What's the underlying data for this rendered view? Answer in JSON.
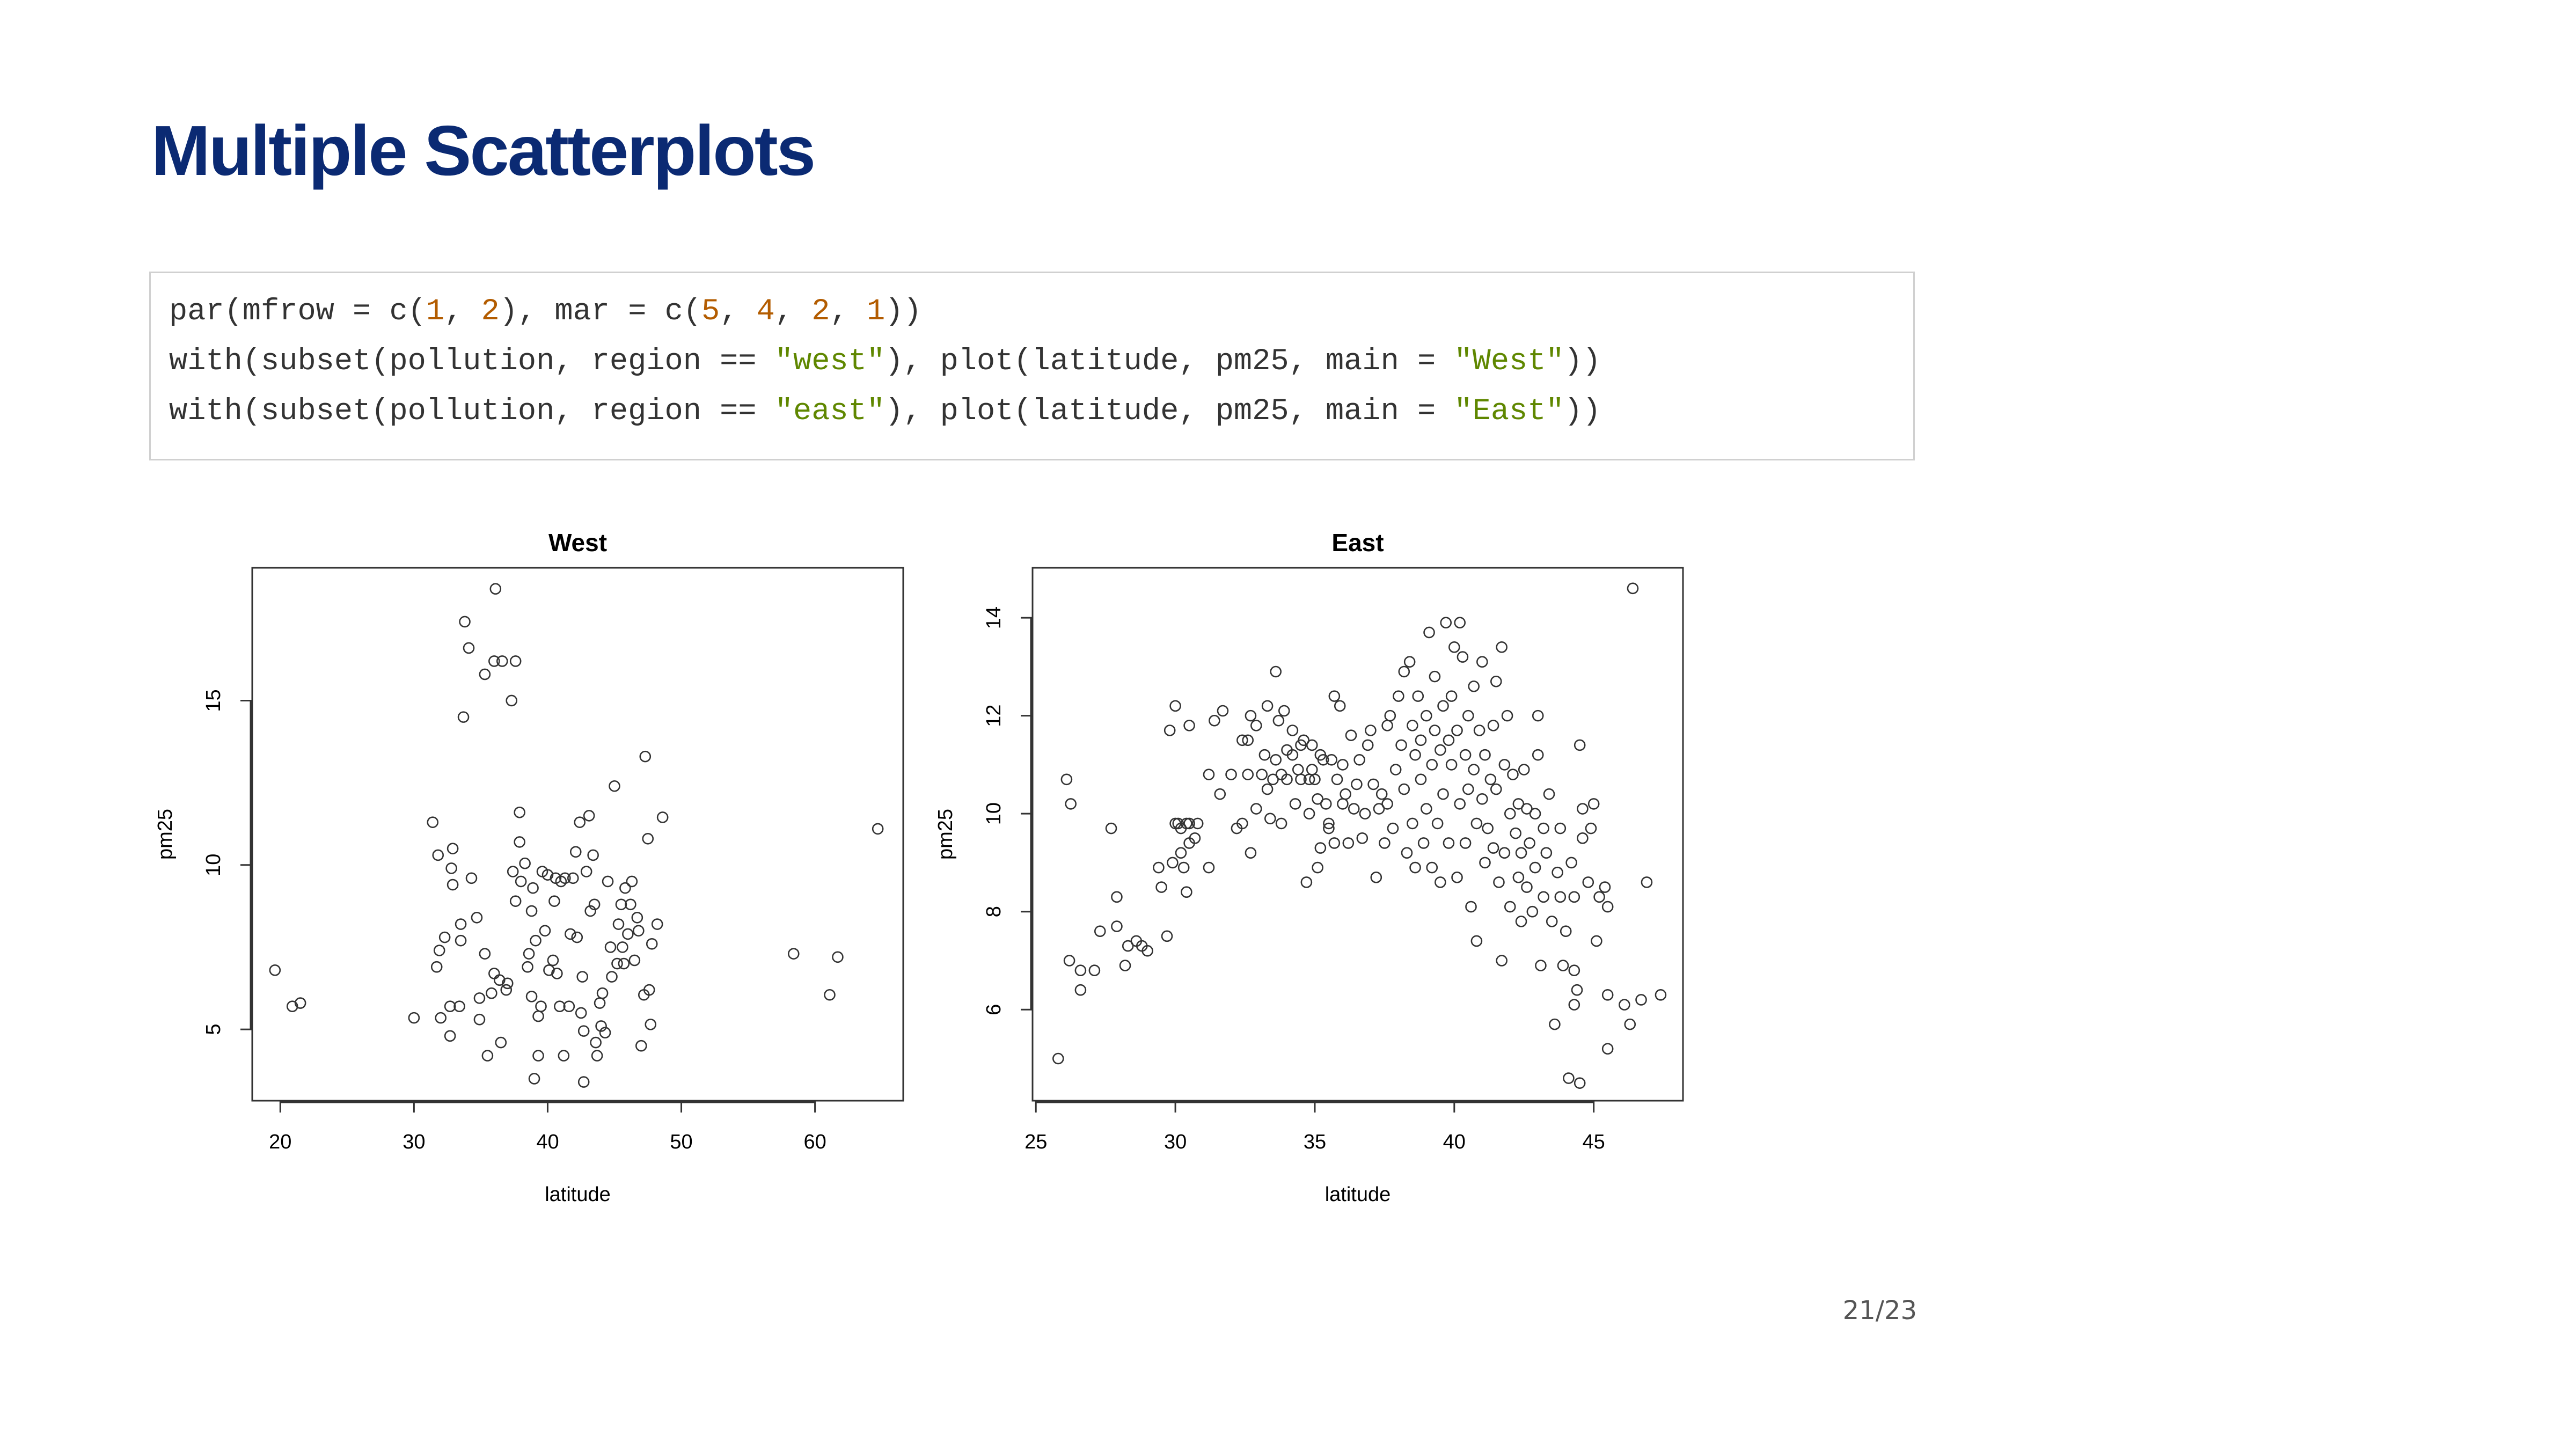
{
  "slide_title": "Multiple Scatterplots",
  "code": {
    "lines": [
      [
        {
          "text": "par(mfrow = c(",
          "color": "#333333"
        },
        {
          "text": "1",
          "color": "#b35c00"
        },
        {
          "text": ", ",
          "color": "#333333"
        },
        {
          "text": "2",
          "color": "#b35c00"
        },
        {
          "text": "), mar = c(",
          "color": "#333333"
        },
        {
          "text": "5",
          "color": "#b35c00"
        },
        {
          "text": ", ",
          "color": "#333333"
        },
        {
          "text": "4",
          "color": "#b35c00"
        },
        {
          "text": ", ",
          "color": "#333333"
        },
        {
          "text": "2",
          "color": "#b35c00"
        },
        {
          "text": ", ",
          "color": "#333333"
        },
        {
          "text": "1",
          "color": "#b35c00"
        },
        {
          "text": "))",
          "color": "#333333"
        }
      ],
      [
        {
          "text": "with(subset(pollution, region == ",
          "color": "#333333"
        },
        {
          "text": "\"west\"",
          "color": "#5f8700"
        },
        {
          "text": "), plot(latitude, pm25, main = ",
          "color": "#333333"
        },
        {
          "text": "\"West\"",
          "color": "#5f8700"
        },
        {
          "text": "))",
          "color": "#333333"
        }
      ],
      [
        {
          "text": "with(subset(pollution, region == ",
          "color": "#333333"
        },
        {
          "text": "\"east\"",
          "color": "#5f8700"
        },
        {
          "text": "), plot(latitude, pm25, main = ",
          "color": "#333333"
        },
        {
          "text": "\"East\"",
          "color": "#5f8700"
        },
        {
          "text": "))",
          "color": "#333333"
        }
      ]
    ]
  },
  "chart_data": [
    {
      "type": "scatter",
      "title": "West",
      "xlabel": "latitude",
      "ylabel": "pm25",
      "color": "#333333",
      "xlim": [
        17.9,
        66.6
      ],
      "ylim": [
        2.83,
        19.04
      ],
      "xticks": [
        20,
        30,
        40,
        50,
        60
      ],
      "yticks": [
        5,
        10,
        15
      ],
      "x": [
        19.6,
        20.9,
        21.5,
        30,
        31.4,
        31.8,
        31.7,
        31.9,
        32.3,
        32,
        32.9,
        32.8,
        32.9,
        32.7,
        32.7,
        33.4,
        33.5,
        33.5,
        34.3,
        34.7,
        33.8,
        34.1,
        33.7,
        35.3,
        36.1,
        36,
        36.6,
        37.6,
        37.3,
        35.3,
        34.9,
        34.9,
        35.5,
        35.8,
        36,
        36.5,
        36.4,
        36.9,
        37,
        37.4,
        37.6,
        37.9,
        37.9,
        38,
        38.3,
        38.5,
        38.6,
        38.8,
        38.9,
        38.8,
        39,
        39.1,
        39.3,
        39.3,
        39.5,
        39.6,
        39.8,
        40,
        40.1,
        40.4,
        40.5,
        40.6,
        40.7,
        40.9,
        41,
        41.2,
        41.3,
        41.6,
        41.7,
        41.9,
        42.1,
        42.2,
        42.4,
        42.5,
        42.6,
        42.7,
        42.7,
        42.9,
        43.1,
        43.2,
        43.4,
        43.5,
        43.6,
        43.7,
        43.9,
        44,
        44.1,
        44.3,
        44.5,
        44.7,
        44.8,
        45,
        45.2,
        45.3,
        45.5,
        45.6,
        45.7,
        45.8,
        46,
        46.2,
        46.3,
        46.5,
        46.7,
        46.8,
        47,
        47.2,
        47.3,
        47.5,
        47.6,
        47.7,
        47.8,
        48.2,
        48.6,
        58.4,
        61.1,
        61.7,
        64.7
      ],
      "values": [
        6.8,
        5.7,
        5.8,
        5.35,
        11.3,
        10.3,
        6.9,
        7.4,
        7.8,
        5.35,
        10.5,
        9.9,
        9.4,
        5.7,
        4.8,
        5.7,
        8.2,
        7.7,
        9.6,
        8.4,
        17.4,
        16.6,
        14.5,
        15.8,
        18.4,
        16.2,
        16.2,
        16.2,
        15,
        7.3,
        5.95,
        5.3,
        4.2,
        6.1,
        6.7,
        4.6,
        6.5,
        6.2,
        6.4,
        9.8,
        8.9,
        11.6,
        10.7,
        9.5,
        10.05,
        6.9,
        7.3,
        8.6,
        9.3,
        6,
        3.5,
        7.7,
        5.4,
        4.2,
        5.7,
        9.8,
        8,
        9.7,
        6.8,
        7.1,
        8.9,
        9.6,
        6.7,
        5.7,
        9.5,
        4.2,
        9.6,
        5.7,
        7.9,
        9.6,
        10.4,
        7.8,
        11.3,
        5.5,
        6.6,
        4.95,
        3.4,
        9.8,
        11.5,
        8.6,
        10.3,
        8.8,
        4.6,
        4.2,
        5.8,
        5.1,
        6.1,
        4.9,
        9.5,
        7.5,
        6.6,
        12.4,
        7,
        8.2,
        8.8,
        7.5,
        7,
        9.3,
        7.9,
        8.8,
        9.5,
        7.1,
        8.4,
        8,
        4.5,
        6.05,
        13.3,
        10.8,
        6.2,
        5.15,
        7.6,
        8.2,
        11.45,
        7.3,
        6.05,
        7.2,
        11.1
      ]
    },
    {
      "type": "scatter",
      "title": "East",
      "xlabel": "latitude",
      "ylabel": "pm25",
      "color": "#333333",
      "xlim": [
        24.88,
        48.2
      ],
      "ylim": [
        4.14,
        15.02
      ],
      "xticks": [
        25,
        30,
        35,
        40,
        45
      ],
      "yticks": [
        6,
        8,
        10,
        12,
        14
      ],
      "x": [
        25.8,
        26.1,
        26.25,
        26.2,
        26.6,
        26.6,
        27.1,
        27.3,
        27.7,
        27.9,
        27.9,
        28.2,
        28.3,
        28.6,
        28.8,
        29,
        29.4,
        29.5,
        29.7,
        29.8,
        30,
        30,
        30.1,
        30.2,
        30.4,
        30.5,
        30.5,
        29.9,
        30.2,
        30.3,
        30.5,
        30.7,
        30.8,
        30.4,
        31.2,
        31.2,
        31.4,
        31.6,
        31.7,
        32,
        32.2,
        32.4,
        32.4,
        32.6,
        32.6,
        32.7,
        32.7,
        32.9,
        32.9,
        33.1,
        33.2,
        33.3,
        33.3,
        33.4,
        33.5,
        33.6,
        33.6,
        33.7,
        33.8,
        33.8,
        33.9,
        34,
        34,
        34.2,
        34.2,
        34.3,
        34.4,
        34.5,
        34.5,
        34.6,
        34.7,
        34.8,
        34.8,
        34.9,
        34.9,
        35,
        35.1,
        35.1,
        35.2,
        35.2,
        35.3,
        35.4,
        35.5,
        35.5,
        35.6,
        35.7,
        35.7,
        35.8,
        35.9,
        36,
        36,
        36.1,
        36.2,
        36.3,
        36.4,
        36.5,
        36.6,
        36.7,
        36.8,
        36.9,
        37,
        37.1,
        37.2,
        37.3,
        37.4,
        37.5,
        37.6,
        37.6,
        37.7,
        37.8,
        37.9,
        38,
        38.1,
        38.2,
        38.2,
        38.3,
        38.4,
        38.5,
        38.5,
        38.6,
        38.6,
        38.7,
        38.8,
        38.8,
        38.9,
        39,
        39,
        39.1,
        39.2,
        39.2,
        39.3,
        39.3,
        39.4,
        39.5,
        39.5,
        39.6,
        39.6,
        39.7,
        39.8,
        39.8,
        39.9,
        39.9,
        40,
        40.1,
        40.1,
        40.2,
        40.2,
        40.3,
        40.4,
        40.4,
        40.5,
        40.5,
        40.6,
        40.7,
        40.7,
        40.8,
        40.8,
        40.9,
        41,
        41,
        41.1,
        41.1,
        41.2,
        41.3,
        41.4,
        41.4,
        41.5,
        41.5,
        41.6,
        41.7,
        41.7,
        41.8,
        41.8,
        41.9,
        42,
        42,
        42.1,
        42.2,
        42.3,
        42.3,
        42.4,
        42.4,
        42.5,
        42.6,
        42.6,
        42.7,
        42.8,
        42.9,
        42.9,
        43,
        43,
        43.1,
        43.2,
        43.2,
        43.3,
        43.4,
        43.5,
        43.6,
        43.7,
        43.8,
        43.8,
        43.9,
        44,
        44.1,
        44.2,
        44.3,
        44.3,
        44.3,
        44.4,
        44.5,
        44.5,
        44.6,
        44.6,
        44.8,
        44.9,
        45,
        45.1,
        45.2,
        45.4,
        45.5,
        45.5,
        45.5,
        46.1,
        46.3,
        46.4,
        46.7,
        46.9,
        47.4
      ],
      "values": [
        5,
        10.7,
        10.2,
        7,
        6.4,
        6.8,
        6.8,
        7.6,
        9.7,
        8.3,
        7.7,
        6.9,
        7.3,
        7.4,
        7.3,
        7.2,
        8.9,
        8.5,
        7.5,
        11.7,
        12.2,
        9.8,
        9.8,
        9.7,
        9.8,
        9.8,
        11.8,
        9,
        9.2,
        8.9,
        9.4,
        9.5,
        9.8,
        8.4,
        8.9,
        10.8,
        11.9,
        10.4,
        12.1,
        10.8,
        9.7,
        11.5,
        9.8,
        10.8,
        11.5,
        12,
        9.2,
        10.1,
        11.8,
        10.8,
        11.2,
        12.2,
        10.5,
        9.9,
        10.7,
        12.9,
        11.1,
        11.9,
        9.8,
        10.8,
        12.1,
        11.3,
        10.7,
        11.7,
        11.2,
        10.2,
        10.9,
        11.4,
        10.7,
        11.5,
        8.6,
        10.7,
        10,
        10.9,
        11.4,
        10.7,
        8.9,
        10.3,
        11.2,
        9.3,
        11.1,
        10.2,
        9.8,
        9.7,
        11.1,
        12.4,
        9.4,
        10.7,
        12.2,
        10.2,
        11,
        10.4,
        9.4,
        11.6,
        10.1,
        10.6,
        11.1,
        9.5,
        10,
        11.4,
        11.7,
        10.6,
        8.7,
        10.1,
        10.4,
        9.4,
        11.8,
        10.2,
        12,
        9.7,
        10.9,
        12.4,
        11.4,
        12.9,
        10.5,
        9.2,
        13.1,
        11.8,
        9.8,
        11.2,
        8.9,
        12.4,
        10.7,
        11.5,
        9.4,
        12,
        10.1,
        13.7,
        11,
        8.9,
        11.7,
        12.8,
        9.8,
        11.3,
        8.6,
        12.2,
        10.4,
        13.9,
        11.5,
        9.4,
        12.4,
        11,
        13.4,
        8.7,
        11.7,
        13.9,
        10.2,
        13.2,
        11.2,
        9.4,
        12,
        10.5,
        8.1,
        12.6,
        10.9,
        9.8,
        7.4,
        11.7,
        10.3,
        13.1,
        9,
        11.2,
        9.7,
        10.7,
        11.8,
        9.3,
        12.7,
        10.5,
        8.6,
        13.4,
        7,
        11,
        9.2,
        12,
        10,
        8.1,
        10.8,
        9.6,
        8.7,
        10.2,
        7.8,
        9.2,
        10.9,
        10.1,
        8.5,
        9.4,
        8,
        10,
        8.9,
        11.2,
        12,
        6.9,
        9.7,
        8.3,
        9.2,
        10.4,
        7.8,
        5.7,
        8.8,
        8.3,
        9.7,
        6.9,
        7.6,
        4.6,
        9,
        6.8,
        6.1,
        8.3,
        6.4,
        11.4,
        4.5,
        10.1,
        9.5,
        8.6,
        9.7,
        10.2,
        7.4,
        8.3,
        8.5,
        8.1,
        6.3,
        5.2,
        6.1,
        5.7,
        14.6,
        6.2,
        8.6,
        6.3
      ]
    }
  ],
  "page_number": "21/23"
}
